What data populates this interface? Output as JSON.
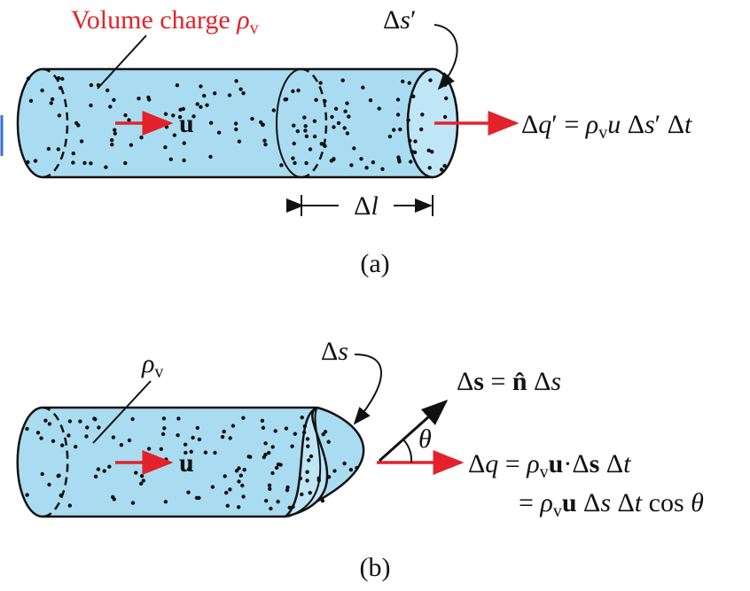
{
  "figure_a": {
    "volume_charge_label": [
      "Volume charge ",
      "ρ",
      "v"
    ],
    "surface_label": [
      "Δ",
      "s",
      "′"
    ],
    "velocity_label": "u",
    "charge_equation": [
      "Δ",
      "q",
      "′ = ",
      "ρ",
      "v",
      "u",
      " Δ",
      "s",
      "′ Δ",
      "t"
    ],
    "length_label": [
      "Δ",
      "l"
    ],
    "caption": "(a)"
  },
  "figure_b": {
    "density_label": [
      "ρ",
      "v"
    ],
    "surface_label": [
      "Δ",
      "s"
    ],
    "surface_vector_equation": [
      "Δ",
      "s",
      " = ",
      "n̂",
      " Δ",
      "s"
    ],
    "angle_label": "θ",
    "velocity_label": "u",
    "charge_equation_line1": [
      "Δ",
      "q",
      " = ",
      "ρ",
      "v",
      "u",
      "·",
      "Δ",
      "s",
      " Δ",
      "t"
    ],
    "charge_equation_line2": [
      "= ",
      "ρ",
      "v",
      "u",
      " Δ",
      "s",
      " Δ",
      "t",
      " cos ",
      "θ"
    ],
    "caption": "(b)"
  }
}
